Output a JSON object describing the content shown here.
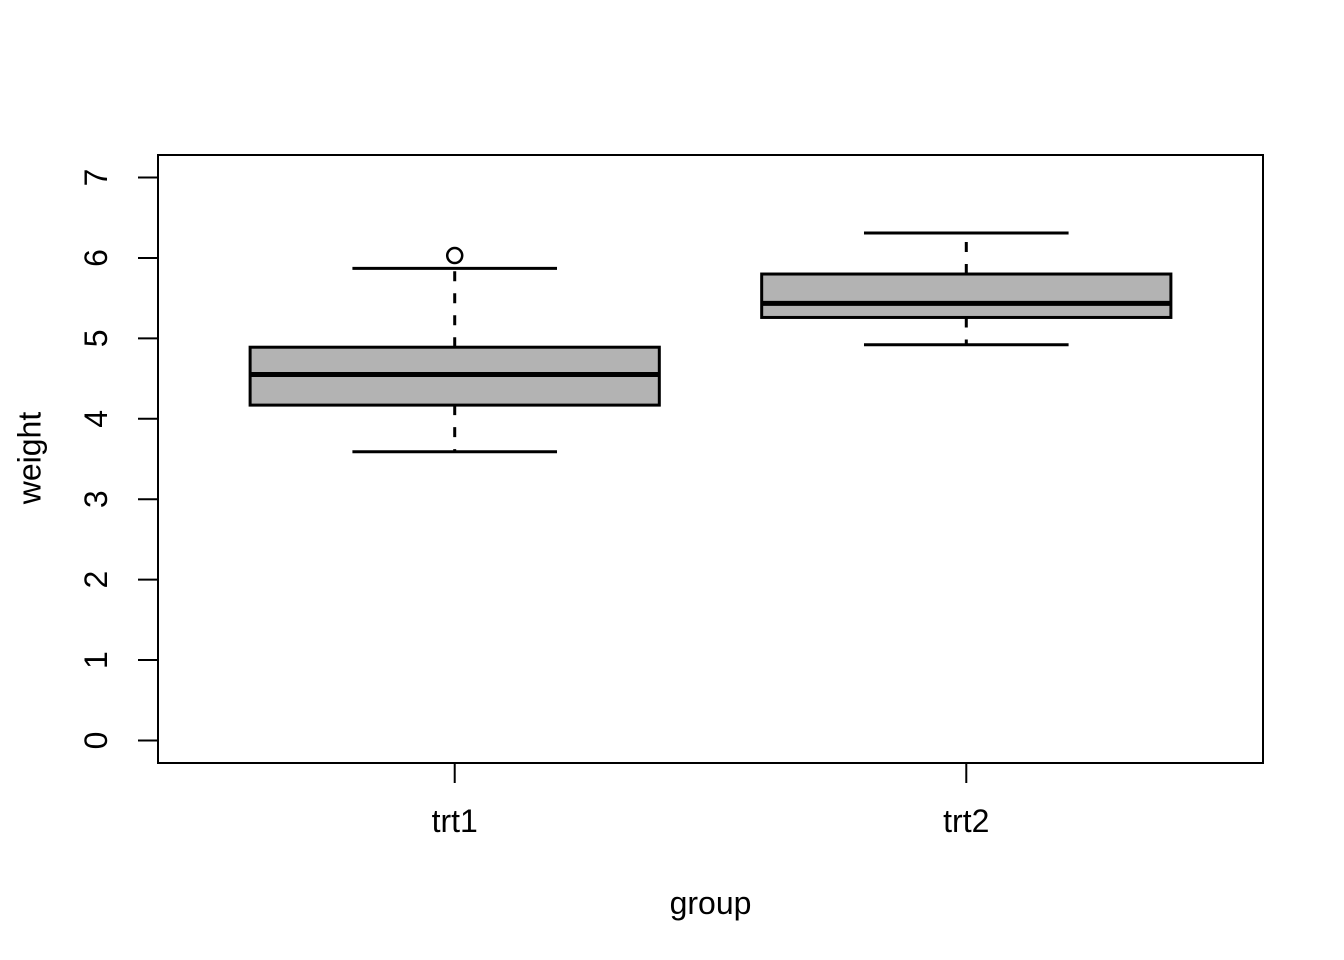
{
  "figure": {
    "background_color": "#ffffff",
    "line_color": "#000000"
  },
  "chart_data": {
    "type": "boxplot",
    "title": "",
    "xlabel": "group",
    "ylabel": "weight",
    "categories": [
      "trt1",
      "trt2"
    ],
    "y_ticks": [
      0,
      1,
      2,
      3,
      4,
      5,
      6,
      7
    ],
    "ylim": [
      0,
      7
    ],
    "grid": false,
    "legend": false,
    "box_fill_color": "#b3b3b3",
    "line_color": "#000000",
    "boxes": [
      {
        "category": "trt1",
        "whisker_low": 3.59,
        "q1": 4.17,
        "median": 4.55,
        "q3": 4.89,
        "whisker_high": 5.87,
        "outliers": [
          6.03
        ]
      },
      {
        "category": "trt2",
        "whisker_low": 4.92,
        "q1": 5.26,
        "median": 5.435,
        "q3": 5.8,
        "whisker_high": 6.31,
        "outliers": []
      }
    ]
  }
}
